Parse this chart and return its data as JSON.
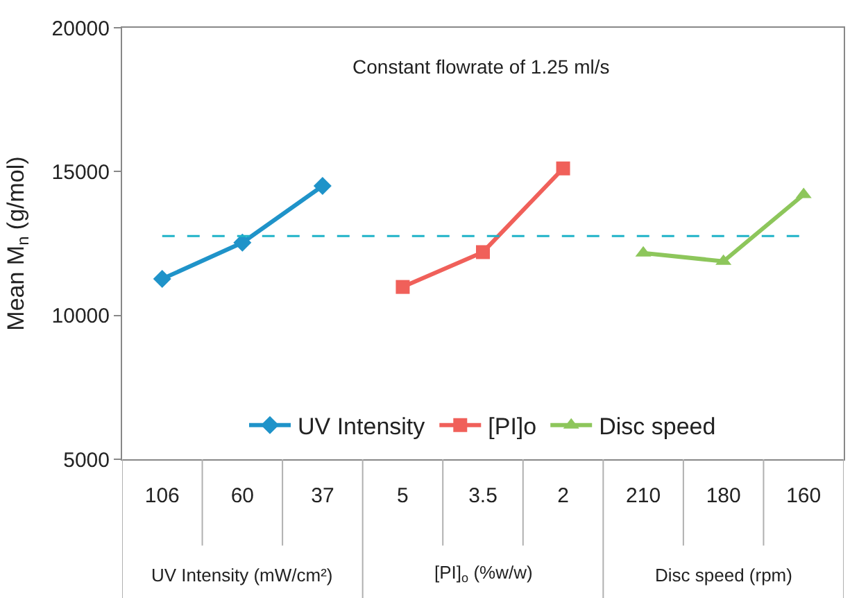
{
  "chart_data": {
    "type": "line",
    "title": "Constant flowrate of 1.25 ml/s",
    "ylabel": "Mean M$_{n}$ (g/mol)",
    "categories": [
      "106",
      "60",
      "37",
      "5",
      "3.5",
      "2",
      "210",
      "180",
      "160"
    ],
    "series": [
      {
        "name": "UV Intensity",
        "color": "#1f93c9",
        "marker": "diamond",
        "values": [
          11270,
          12530,
          14500,
          null,
          null,
          null,
          null,
          null,
          null
        ]
      },
      {
        "name": "[PI]o",
        "color": "#f0605a",
        "marker": "square",
        "values": [
          null,
          null,
          null,
          10990,
          12200,
          15110,
          null,
          null,
          null
        ]
      },
      {
        "name": "Disc speed",
        "color": "#8dc65b",
        "marker": "triangle",
        "values": [
          null,
          null,
          null,
          null,
          null,
          null,
          12170,
          11880,
          14200
        ]
      }
    ],
    "ref_lines": [
      {
        "axis": "y",
        "value": 12760,
        "color": "#1fb3c8",
        "line_style": "dashed"
      }
    ],
    "annotations": [
      "UV Intensity (mW/cm²)",
      "[PI]$_{o}$ (%w/w)",
      "Disc speed (rpm)"
    ],
    "ylim": [
      5000,
      20000
    ],
    "yticks": [
      5000,
      10000,
      15000,
      20000
    ],
    "legend": "bottom"
  }
}
